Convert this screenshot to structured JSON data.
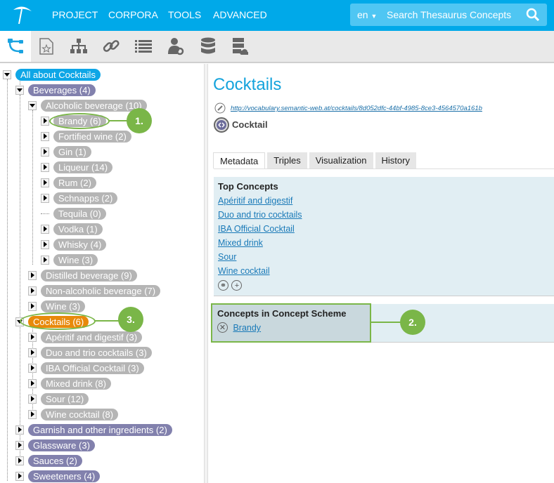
{
  "header": {
    "nav": [
      "PROJECT",
      "CORPORA",
      "TOOLS",
      "ADVANCED"
    ],
    "lang": "en",
    "search_placeholder": "Search Thesaurus Concepts"
  },
  "toolbar": {
    "icons": [
      "hierarchy-tree-icon",
      "concept-scheme-icon",
      "org-chart-icon",
      "link-icon",
      "list-icon",
      "user-settings-icon",
      "database-icon",
      "server-cloud-icon"
    ],
    "active": 0
  },
  "tree": [
    {
      "label": "All about Cocktails",
      "level": 0,
      "style": "root",
      "toggle": "open"
    },
    {
      "label": "Beverages (4)",
      "level": 1,
      "style": "top",
      "toggle": "open"
    },
    {
      "label": "Alcoholic beverage (10)",
      "level": 2,
      "style": "concept",
      "toggle": "open"
    },
    {
      "label": "Brandy (6)",
      "level": 3,
      "style": "concept",
      "toggle": "closed"
    },
    {
      "label": "Fortified wine (2)",
      "level": 3,
      "style": "concept",
      "toggle": "closed"
    },
    {
      "label": "Gin (1)",
      "level": 3,
      "style": "concept",
      "toggle": "closed"
    },
    {
      "label": "Liqueur (14)",
      "level": 3,
      "style": "concept",
      "toggle": "closed"
    },
    {
      "label": "Rum (2)",
      "level": 3,
      "style": "concept",
      "toggle": "closed"
    },
    {
      "label": "Schnapps (2)",
      "level": 3,
      "style": "concept",
      "toggle": "closed"
    },
    {
      "label": "Tequila (0)",
      "level": 3,
      "style": "concept",
      "toggle": "none"
    },
    {
      "label": "Vodka (1)",
      "level": 3,
      "style": "concept",
      "toggle": "closed"
    },
    {
      "label": "Whisky (4)",
      "level": 3,
      "style": "concept",
      "toggle": "closed"
    },
    {
      "label": "Wine (3)",
      "level": 3,
      "style": "concept",
      "toggle": "closed"
    },
    {
      "label": "Distilled beverage (9)",
      "level": 2,
      "style": "concept",
      "toggle": "closed"
    },
    {
      "label": "Non-alcoholic beverage (7)",
      "level": 2,
      "style": "concept",
      "toggle": "closed"
    },
    {
      "label": "Wine (3)",
      "level": 2,
      "style": "concept",
      "toggle": "closed"
    },
    {
      "label": "Cocktails (6)",
      "level": 1,
      "style": "selected",
      "toggle": "open"
    },
    {
      "label": "Apéritif and digestif (3)",
      "level": 2,
      "style": "concept",
      "toggle": "closed"
    },
    {
      "label": "Duo and trio cocktails (3)",
      "level": 2,
      "style": "concept",
      "toggle": "closed"
    },
    {
      "label": "IBA Official Cocktail (3)",
      "level": 2,
      "style": "concept",
      "toggle": "closed"
    },
    {
      "label": "Mixed drink (8)",
      "level": 2,
      "style": "concept",
      "toggle": "closed"
    },
    {
      "label": "Sour (12)",
      "level": 2,
      "style": "concept",
      "toggle": "closed"
    },
    {
      "label": "Wine cocktail (8)",
      "level": 2,
      "style": "concept",
      "toggle": "closed"
    },
    {
      "label": "Garnish and other ingredients (2)",
      "level": 1,
      "style": "top",
      "toggle": "closed"
    },
    {
      "label": "Glassware (3)",
      "level": 1,
      "style": "top",
      "toggle": "closed"
    },
    {
      "label": "Sauces (2)",
      "level": 1,
      "style": "top",
      "toggle": "closed"
    },
    {
      "label": "Sweeteners (4)",
      "level": 1,
      "style": "top",
      "toggle": "closed"
    }
  ],
  "colors": {
    "root": "#0ea6e6",
    "top": "#8281ad",
    "concept": "#b5b5b5",
    "selected": "#e8890b",
    "annotation": "#7ab648",
    "header": "#00a9e9"
  },
  "annotations": [
    "1.",
    "2.",
    "3."
  ],
  "detail": {
    "title": "Cocktails",
    "uri": "http://vocabulary.semantic-web.at/cocktails/8d052dfc-44bf-4985-8ce3-4564570a161b",
    "type": "Cocktail",
    "tabs": [
      "Metadata",
      "Triples",
      "Visualization",
      "History"
    ],
    "active_tab": 0,
    "top_concepts_heading": "Top Concepts",
    "top_concepts": [
      "Apéritif and digestif",
      "Duo and trio cocktails",
      "IBA Official Cocktail",
      "Mixed drink",
      "Sour",
      "Wine cocktail"
    ],
    "scheme_heading": "Concepts in Concept Scheme",
    "scheme_concepts": [
      "Brandy"
    ]
  }
}
